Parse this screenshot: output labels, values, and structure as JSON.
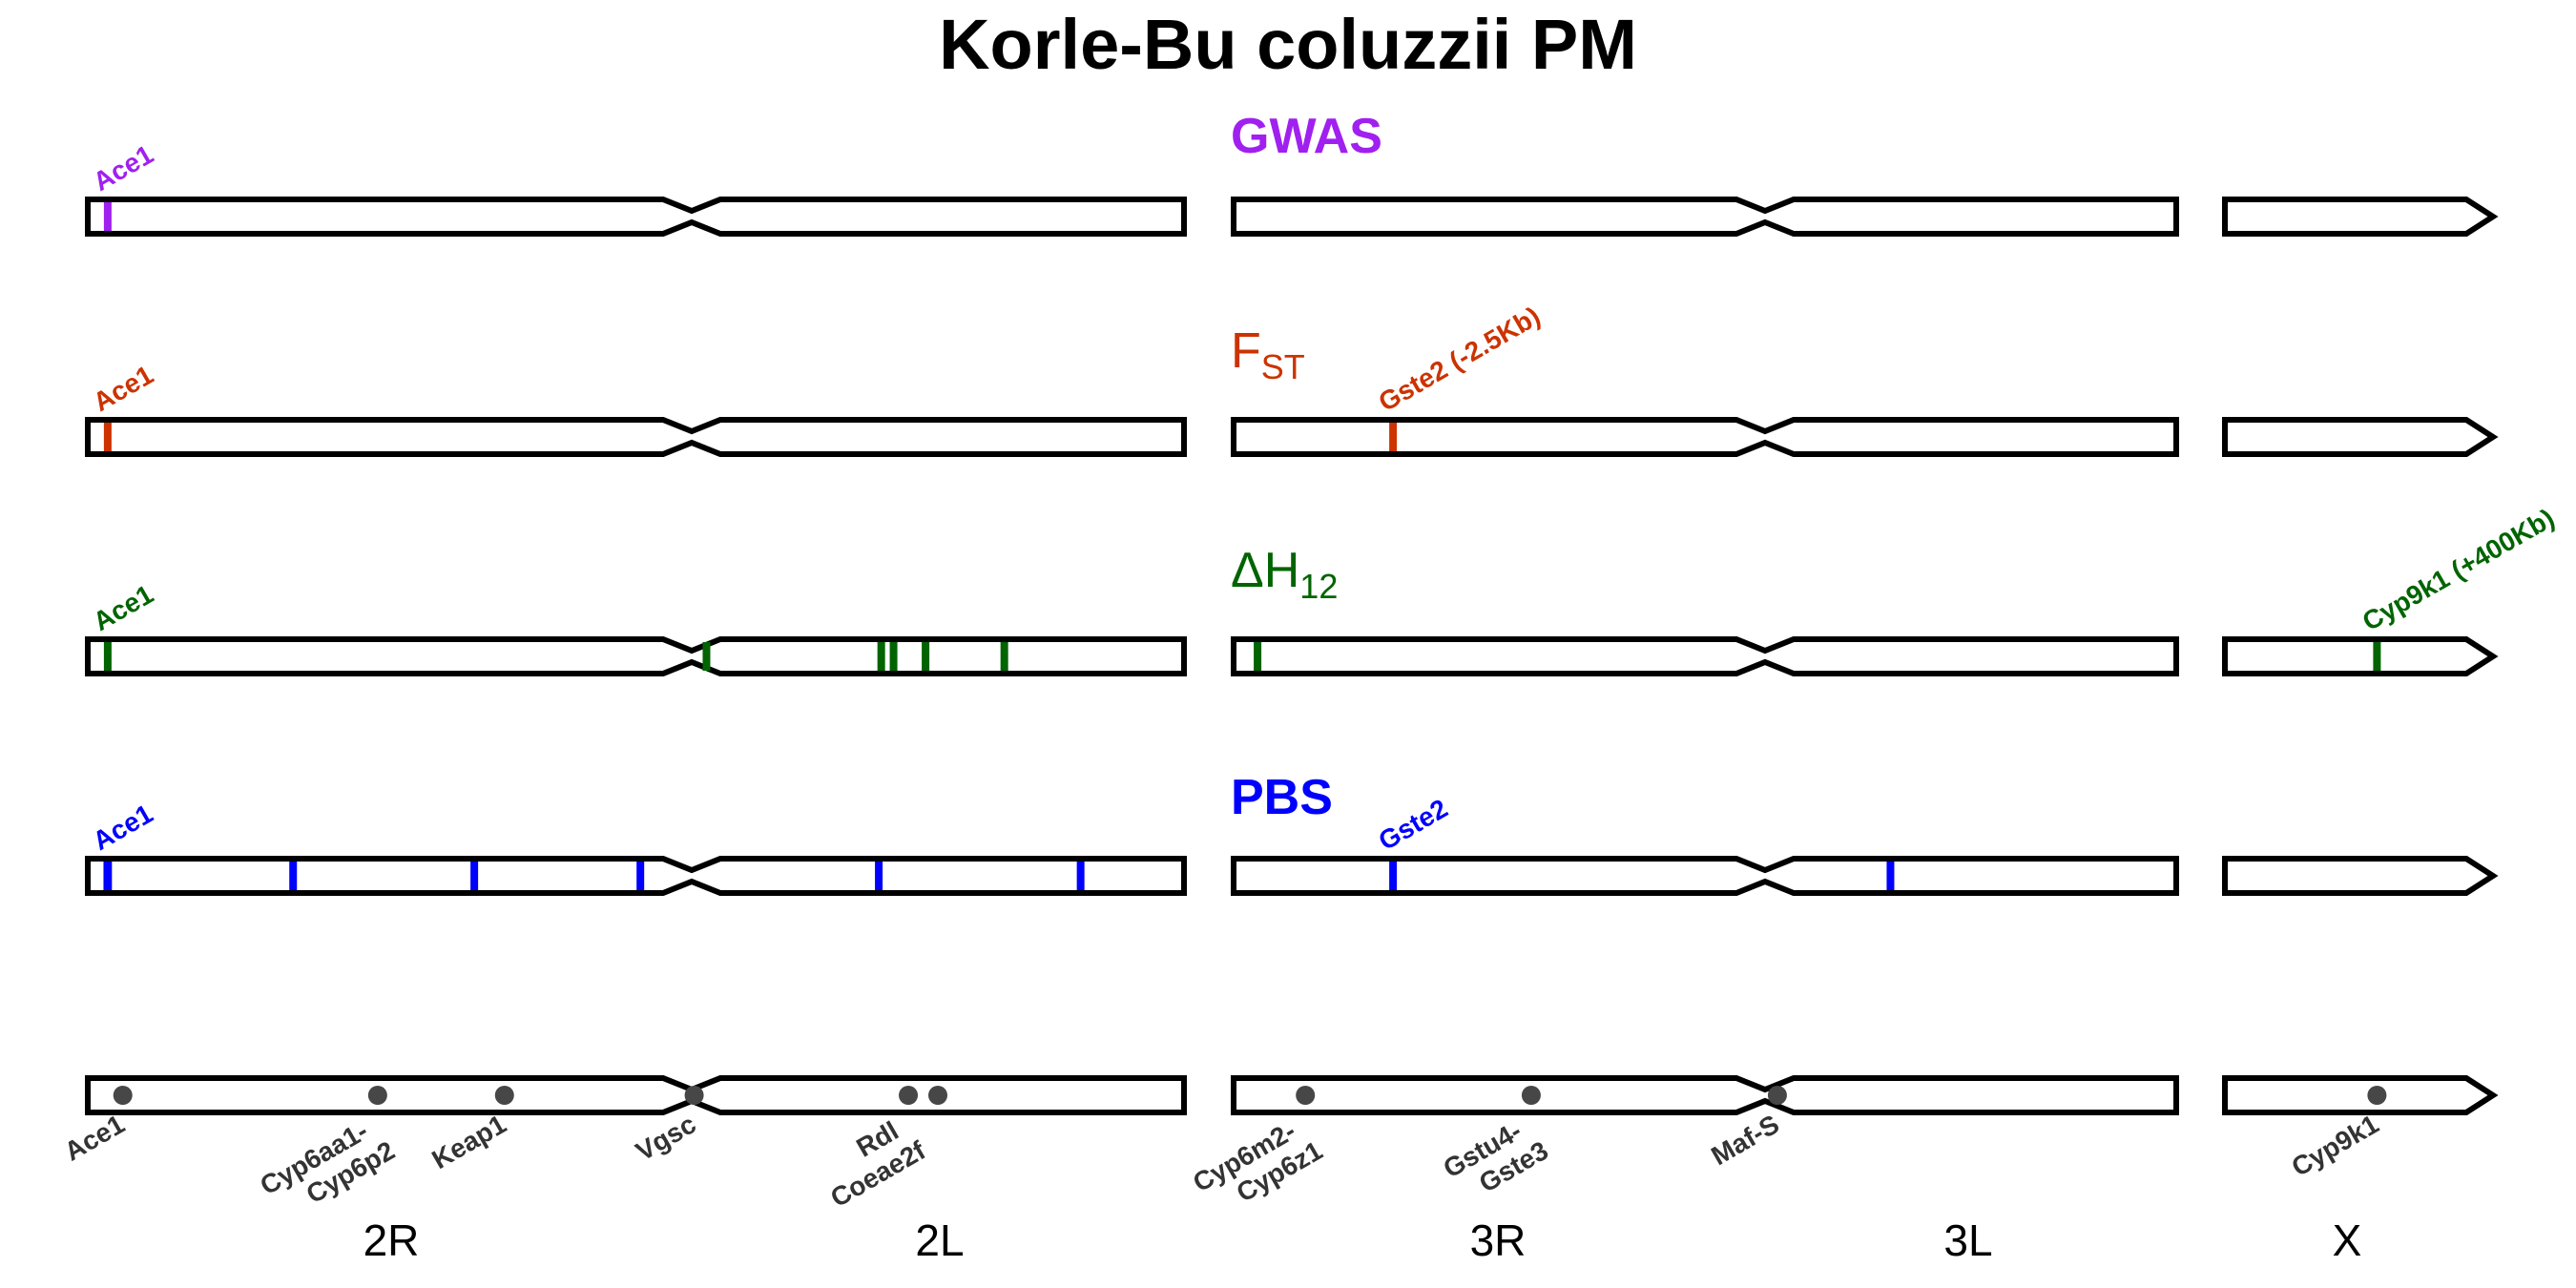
{
  "figure": {
    "title": "Korle-Bu coluzzii PM"
  },
  "panels": [
    {
      "key": "gwas",
      "title": "GWAS",
      "title_sub": "",
      "color": "#a020f0",
      "bold": true,
      "hits": [
        {
          "label": "Ace1",
          "pos": 0.033,
          "width": 0.012,
          "arm": "2R"
        }
      ]
    },
    {
      "key": "fst",
      "title": "F",
      "title_sub": "ST",
      "color": "#cc3300",
      "bold": false,
      "hits": [
        {
          "label": "Ace1",
          "pos": 0.033,
          "width": 0.012,
          "arm": "2R"
        },
        {
          "label": "Gste2 (-2.5Kb)",
          "pos": 0.3,
          "width": 0.012,
          "arm": "3R"
        }
      ]
    },
    {
      "key": "h12",
      "title": "ΔH",
      "title_sub": "12",
      "color": "#006400",
      "bold": false,
      "hits": [
        {
          "label": "Ace1",
          "pos": 0.033,
          "width": 0.012,
          "arm": "2R"
        },
        {
          "label": "",
          "pos": 0.03,
          "width": 0.01,
          "arm": "2L"
        },
        {
          "label": "",
          "pos": 0.385,
          "width": 0.01,
          "arm": "2L"
        },
        {
          "label": "",
          "pos": 0.41,
          "width": 0.01,
          "arm": "2L"
        },
        {
          "label": "",
          "pos": 0.475,
          "width": 0.01,
          "arm": "2L"
        },
        {
          "label": "",
          "pos": 0.635,
          "width": 0.015,
          "arm": "2L"
        },
        {
          "label": "",
          "pos": 0.045,
          "width": 0.01,
          "arm": "3R"
        },
        {
          "label": "Cyp9k1 (+400Kb)",
          "pos": 0.63,
          "width": 0.02,
          "arm": "X"
        }
      ]
    },
    {
      "key": "pbs",
      "title": "PBS",
      "title_sub": "",
      "color": "#0000ff",
      "bold": true,
      "hits": [
        {
          "label": "Ace1",
          "pos": 0.033,
          "width": 0.014,
          "arm": "2R"
        },
        {
          "label": "",
          "pos": 0.34,
          "width": 0.01,
          "arm": "2R"
        },
        {
          "label": "",
          "pos": 0.64,
          "width": 0.01,
          "arm": "2R"
        },
        {
          "label": "",
          "pos": 0.915,
          "width": 0.01,
          "arm": "2R"
        },
        {
          "label": "",
          "pos": 0.38,
          "width": 0.01,
          "arm": "2L"
        },
        {
          "label": "",
          "pos": 0.79,
          "width": 0.01,
          "arm": "2L"
        },
        {
          "label": "Gste2",
          "pos": 0.3,
          "width": 0.012,
          "arm": "3R"
        },
        {
          "label": "",
          "pos": 0.305,
          "width": 0.01,
          "arm": "3L"
        }
      ]
    }
  ],
  "genes": [
    {
      "label": "Ace1",
      "arm": "2R",
      "pos": 0.058
    },
    {
      "label": "Cyp6aa1-\nCyp6p2",
      "arm": "2R",
      "pos": 0.48
    },
    {
      "label": "Keap1",
      "arm": "2R",
      "pos": 0.69
    },
    {
      "label": "Vgsc",
      "arm": "2L",
      "pos": 0.005
    },
    {
      "label": "Rdl\nCoeae2f",
      "arm": "2L",
      "pos": 0.44
    },
    {
      "label": "",
      "arm": "2L",
      "pos": 0.5
    },
    {
      "label": "Cyp6m2-\nCyp6z1",
      "arm": "3R",
      "pos": 0.135
    },
    {
      "label": "Gstu4-\nGste3",
      "arm": "3R",
      "pos": 0.56
    },
    {
      "label": "Maf-S",
      "arm": "3L",
      "pos": 0.03
    },
    {
      "label": "Cyp9k1",
      "arm": "X",
      "pos": 0.63
    }
  ],
  "arms": [
    {
      "name": "2R"
    },
    {
      "name": "2L"
    },
    {
      "name": "3R"
    },
    {
      "name": "3L"
    },
    {
      "name": "X"
    }
  ]
}
